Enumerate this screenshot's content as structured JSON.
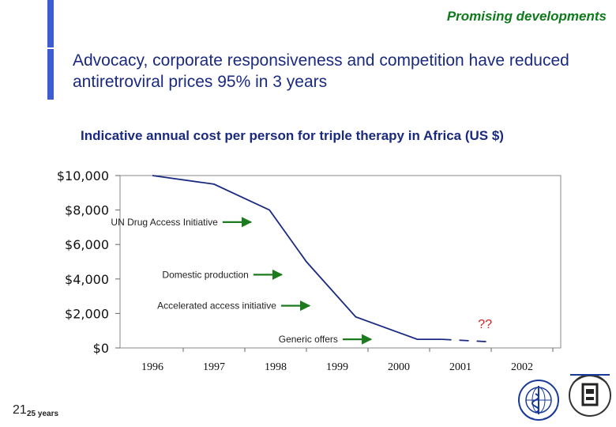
{
  "header": {
    "section_label": "Promising developments",
    "headline": "Advocacy, corporate responsiveness and competition have reduced antiretroviral prices 95% in 3 years"
  },
  "footer": {
    "page_number": "21",
    "tagline": "25 years"
  },
  "logos": [
    "who-emblem",
    "unaids-emblem"
  ],
  "colors": {
    "accent_bar": "#3c5ccf",
    "headline": "#1a2a80",
    "section_label": "#0f7a1c",
    "series_line": "#1a2a80",
    "arrow": "#1e7a1e",
    "unknown": "#d02020"
  },
  "chart_data": {
    "type": "line",
    "title": "Indicative annual cost per person for triple therapy in Africa (US $)",
    "x_categories": [
      "1996",
      "1997",
      "1998",
      "1999",
      "2000",
      "2001",
      "2002"
    ],
    "y_ticks": [
      "$10,000",
      "$8,000",
      "$6,000",
      "$4,000",
      "$2,000",
      "$0"
    ],
    "y_tick_values": [
      10000,
      8000,
      6000,
      4000,
      2000,
      0
    ],
    "ylim": [
      0,
      10000
    ],
    "grid": false,
    "series": [
      {
        "points": [
          {
            "x": 1996.0,
            "y": 10000
          },
          {
            "x": 1997.0,
            "y": 9500
          },
          {
            "x": 1997.9,
            "y": 8000
          },
          {
            "x": 1998.5,
            "y": 5000
          },
          {
            "x": 1999.3,
            "y": 1800
          },
          {
            "x": 2000.3,
            "y": 500
          },
          {
            "x": 2000.7,
            "y": 500
          }
        ],
        "projection": [
          {
            "x": 2000.7,
            "y": 500
          },
          {
            "x": 2001.5,
            "y": 350
          }
        ]
      }
    ],
    "annotations": [
      {
        "text": "UN Drug Access Initiative",
        "x_end": 1997.6,
        "y": 7300
      },
      {
        "text": "Domestic production",
        "x_end": 1998.1,
        "y": 4250
      },
      {
        "text": "Accelerated access initiative",
        "x_end": 1998.55,
        "y": 2450
      },
      {
        "text": "Generic offers",
        "x_end": 1999.55,
        "y": 500
      }
    ],
    "unknown_label": "??"
  }
}
